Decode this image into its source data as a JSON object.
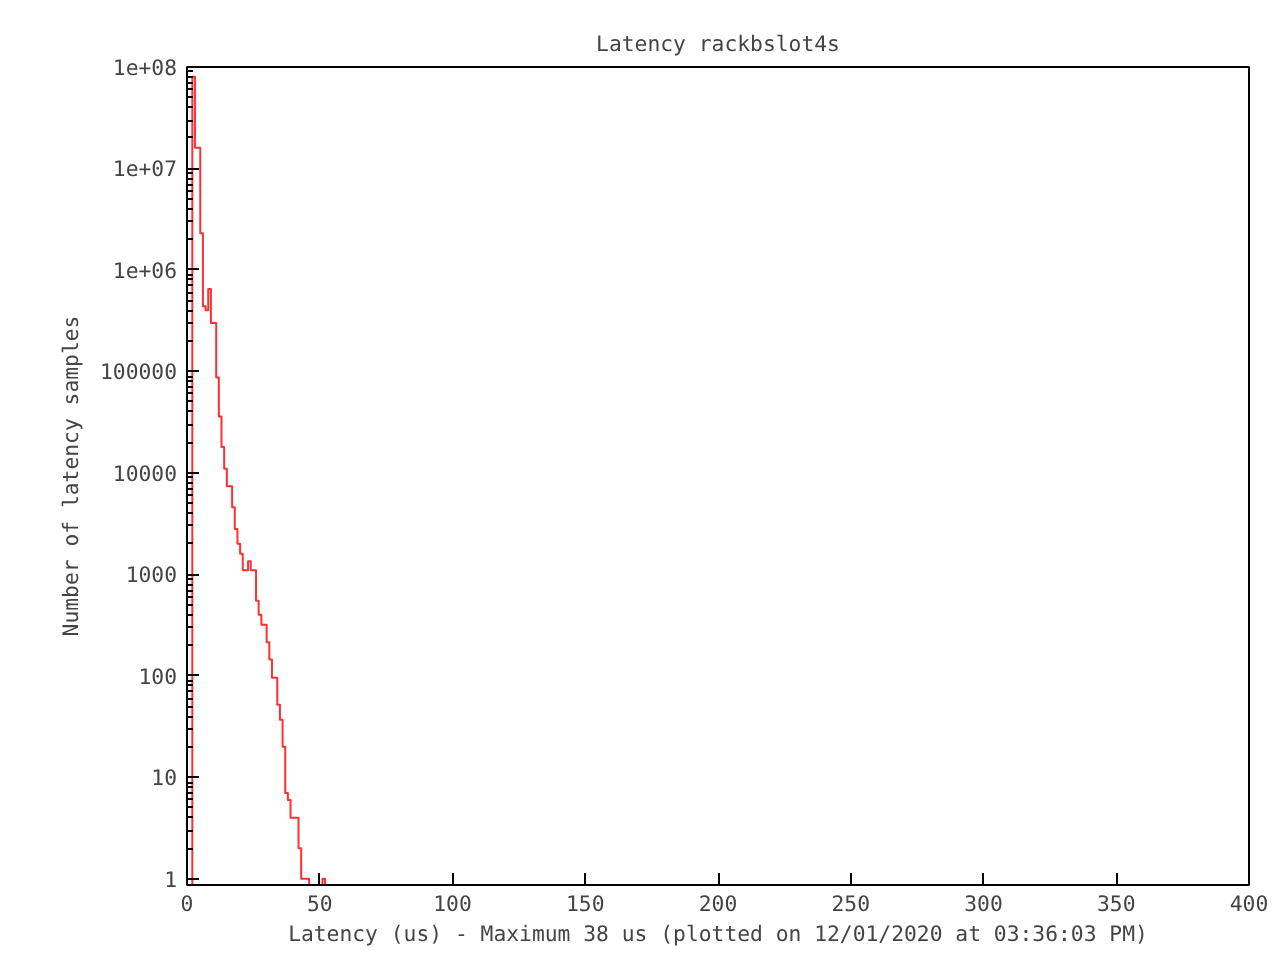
{
  "chart_data": {
    "type": "histogram",
    "title": "Latency rackbslot4s",
    "xlabel": "Latency (us) - Maximum 38 us (plotted on 12/01/2020 at 03:36:03 PM)",
    "ylabel": "Number of latency samples",
    "bins": [
      2,
      3,
      4,
      5,
      6,
      7,
      8,
      9,
      10,
      11,
      12,
      13,
      14,
      15,
      16,
      17,
      18,
      19,
      20,
      21,
      22,
      23,
      24,
      25,
      26,
      27,
      28,
      29,
      30,
      31,
      32,
      33,
      34,
      35,
      36,
      37,
      38,
      39,
      40,
      41,
      42,
      43,
      44,
      45,
      46,
      47,
      48,
      49,
      50,
      51,
      52
    ],
    "values": [
      80000000,
      16000000,
      16000000,
      2300000,
      440000,
      400000,
      650000,
      300000,
      300000,
      87000,
      36000,
      18000,
      11000,
      7400,
      7400,
      4600,
      2800,
      2000,
      1600,
      1100,
      1100,
      1350,
      1100,
      1100,
      550,
      400,
      320,
      320,
      215,
      145,
      96,
      96,
      52,
      37,
      20,
      7,
      6,
      4,
      4,
      4,
      2,
      1,
      1,
      1,
      null,
      null,
      null,
      null,
      null,
      1
    ],
    "color": "#ff3030",
    "log": "y",
    "xlim": [
      0,
      400
    ],
    "xticks": [
      0,
      50,
      100,
      150,
      200,
      250,
      300,
      350,
      400
    ],
    "ylim": [
      0.87,
      100000000
    ],
    "yticks": [
      {
        "value": 1,
        "label": "1"
      },
      {
        "value": 10,
        "label": "10"
      },
      {
        "value": 100,
        "label": "100"
      },
      {
        "value": 1000,
        "label": "1000"
      },
      {
        "value": 10000,
        "label": "10000"
      },
      {
        "value": 100000,
        "label": "100000"
      },
      {
        "value": 1000000,
        "label": "1e+06"
      },
      {
        "value": 10000000,
        "label": "1e+07"
      },
      {
        "value": 100000000,
        "label": "1e+08"
      }
    ],
    "grid": false
  }
}
